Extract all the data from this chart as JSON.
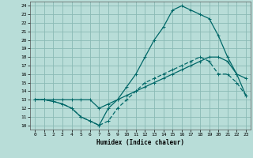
{
  "title": "",
  "xlabel": "Humidex (Indice chaleur)",
  "xlim": [
    -0.5,
    23.5
  ],
  "ylim": [
    9.5,
    24.5
  ],
  "xticks": [
    0,
    1,
    2,
    3,
    4,
    5,
    6,
    7,
    8,
    9,
    10,
    11,
    12,
    13,
    14,
    15,
    16,
    17,
    18,
    19,
    20,
    21,
    22,
    23
  ],
  "yticks": [
    10,
    11,
    12,
    13,
    14,
    15,
    16,
    17,
    18,
    19,
    20,
    21,
    22,
    23,
    24
  ],
  "background_color": "#b8ddd8",
  "grid_color": "#8abab5",
  "line_color": "#006868",
  "line1_x": [
    0,
    1,
    2,
    3,
    4,
    5,
    6,
    7,
    8,
    9,
    10,
    11,
    12,
    13,
    14,
    15,
    16,
    17,
    18,
    19,
    20,
    21,
    22,
    23
  ],
  "line1_y": [
    13,
    13,
    12.8,
    12.5,
    12,
    11,
    10.5,
    10,
    10.5,
    12,
    13,
    14,
    15,
    15.5,
    16,
    16.5,
    17,
    17.5,
    18,
    17.5,
    16,
    16,
    15,
    13.5
  ],
  "line2_x": [
    0,
    1,
    2,
    3,
    4,
    5,
    6,
    7,
    8,
    9,
    10,
    11,
    12,
    13,
    14,
    15,
    16,
    17,
    18,
    19,
    20,
    21,
    22,
    23
  ],
  "line2_y": [
    13,
    13,
    12.8,
    12.5,
    12,
    11,
    10.5,
    10,
    12,
    13,
    14.5,
    16,
    18,
    20,
    21.5,
    23.5,
    24,
    23.5,
    23,
    22.5,
    20.5,
    18,
    16,
    15.5
  ],
  "line3_x": [
    0,
    1,
    2,
    3,
    4,
    5,
    6,
    7,
    8,
    9,
    10,
    11,
    12,
    13,
    14,
    15,
    16,
    17,
    18,
    19,
    20,
    21,
    22,
    23
  ],
  "line3_y": [
    13,
    13,
    13,
    13,
    13,
    13,
    13,
    12,
    12.5,
    13,
    13.5,
    14,
    14.5,
    15,
    15.5,
    16,
    16.5,
    17,
    17.5,
    18,
    18,
    17.5,
    16,
    13.5
  ]
}
